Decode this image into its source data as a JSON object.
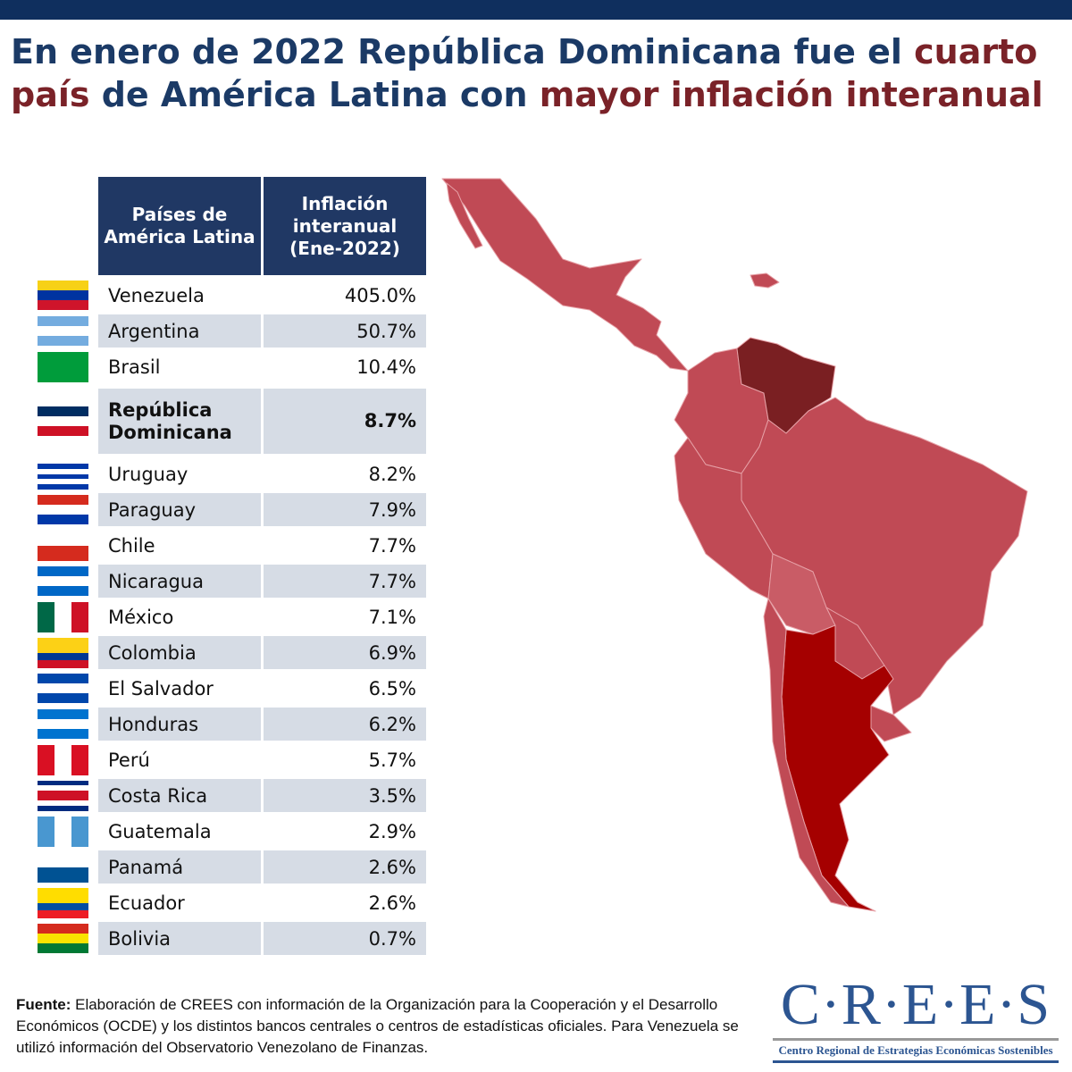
{
  "title": {
    "part1": "En enero de 2022 República Dominicana fue el ",
    "part2": "cuarto país",
    "part3": " de América Latina con ",
    "part4": "mayor inflación interanual"
  },
  "colors": {
    "navy": "#1b3a66",
    "accent": "#7a2228",
    "header_bg": "#203864",
    "row_alt": "#d6dce5",
    "map_default": "#c04a55",
    "map_venezuela": "#7a1f22",
    "map_argentina": "#a50000",
    "map_light": "#c95c66"
  },
  "chart_data": {
    "type": "table",
    "title": "En enero de 2022 República Dominicana fue el cuarto país de América Latina con mayor inflación interanual",
    "columns": [
      "Países de América Latina",
      "Inflación interanual (Ene-2022)"
    ],
    "rows": [
      {
        "country": "Venezuela",
        "value": "405.0%",
        "num": 405.0,
        "flag": [
          "#f7d117",
          "#0033a0",
          "#cf142b"
        ]
      },
      {
        "country": "Argentina",
        "value": "50.7%",
        "num": 50.7,
        "flag": [
          "#74acdf",
          "#ffffff",
          "#74acdf"
        ]
      },
      {
        "country": "Brasil",
        "value": "10.4%",
        "num": 10.4,
        "flag": [
          "#009c3b"
        ]
      },
      {
        "country": "República Dominicana",
        "value": "8.7%",
        "num": 8.7,
        "bold": true,
        "flag": [
          "#002d62",
          "#ffffff",
          "#ce1126"
        ]
      },
      {
        "country": "Uruguay",
        "value": "8.2%",
        "num": 8.2,
        "flag": [
          "#ffffff",
          "#0038a8",
          "#ffffff",
          "#0038a8",
          "#ffffff",
          "#0038a8"
        ]
      },
      {
        "country": "Paraguay",
        "value": "7.9%",
        "num": 7.9,
        "flag": [
          "#d52b1e",
          "#ffffff",
          "#0038a8"
        ]
      },
      {
        "country": "Chile",
        "value": "7.7%",
        "num": 7.7,
        "flag": [
          "#ffffff",
          "#d52b1e"
        ]
      },
      {
        "country": "Nicaragua",
        "value": "7.7%",
        "num": 7.7,
        "flag": [
          "#0067c6",
          "#ffffff",
          "#0067c6"
        ]
      },
      {
        "country": "México",
        "value": "7.1%",
        "num": 7.1,
        "flag": [
          "#006847",
          "#ffffff",
          "#ce1126"
        ],
        "vertical": true
      },
      {
        "country": "Colombia",
        "value": "6.9%",
        "num": 6.9,
        "flag": [
          "#fcd116",
          "#fcd116",
          "#003893",
          "#ce1126"
        ]
      },
      {
        "country": "El Salvador",
        "value": "6.5%",
        "num": 6.5,
        "flag": [
          "#0047ab",
          "#ffffff",
          "#0047ab"
        ]
      },
      {
        "country": "Honduras",
        "value": "6.2%",
        "num": 6.2,
        "flag": [
          "#0073cf",
          "#ffffff",
          "#0073cf"
        ]
      },
      {
        "country": "Perú",
        "value": "5.7%",
        "num": 5.7,
        "flag": [
          "#d91023",
          "#ffffff",
          "#d91023"
        ],
        "vertical": true
      },
      {
        "country": "Costa Rica",
        "value": "3.5%",
        "num": 3.5,
        "flag": [
          "#002b7f",
          "#ffffff",
          "#ce1126",
          "#ce1126",
          "#ffffff",
          "#002b7f"
        ]
      },
      {
        "country": "Guatemala",
        "value": "2.9%",
        "num": 2.9,
        "flag": [
          "#4997d0",
          "#ffffff",
          "#4997d0"
        ],
        "vertical": true
      },
      {
        "country": "Panamá",
        "value": "2.6%",
        "num": 2.6,
        "flag": [
          "#ffffff",
          "#005293"
        ]
      },
      {
        "country": "Ecuador",
        "value": "2.6%",
        "num": 2.6,
        "flag": [
          "#ffdd00",
          "#ffdd00",
          "#034ea2",
          "#ed1c24"
        ]
      },
      {
        "country": "Bolivia",
        "value": "0.7%",
        "num": 0.7,
        "flag": [
          "#d52b1e",
          "#f9e300",
          "#007934"
        ]
      }
    ]
  },
  "source": {
    "label": "Fuente:",
    "text": " Elaboración de CREES con información de la Organización para la Cooperación y el Desarrollo Económicos (OCDE) y los distintos bancos centrales o centros de estadísticas oficiales. Para Venezuela se utilizó información del Observatorio Venezolano de Finanzas."
  },
  "logo": {
    "name": "C·R·E·E·S",
    "subtitle": "Centro Regional de Estrategias Económicas Sostenibles"
  }
}
